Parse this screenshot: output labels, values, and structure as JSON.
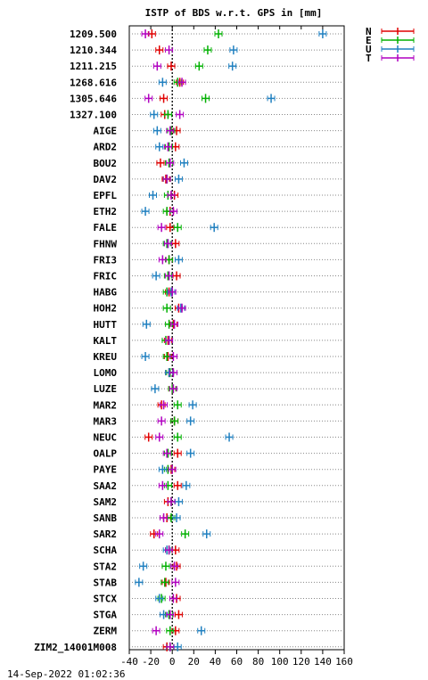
{
  "title": "ISTP of BDS w.r.t. GPS in [mm]",
  "timestamp": "14-Sep-2022 01:02:36",
  "colors": {
    "N": "#e00000",
    "E": "#00b000",
    "U": "#2080c0",
    "T": "#b000c0"
  },
  "chart_data": {
    "type": "scatter",
    "title": "ISTP of BDS w.r.t. GPS in [mm]",
    "xlabel": "",
    "ylabel": "",
    "xlim": [
      -40,
      160
    ],
    "xticks": [
      -40,
      -20,
      0,
      20,
      40,
      60,
      80,
      100,
      120,
      140,
      160
    ],
    "grid": true,
    "legend_position": "top-right",
    "categories": [
      "1209.500",
      "1210.344",
      "1211.215",
      "1268.616",
      "1305.646",
      "1327.100",
      "AIGE",
      "ARD2",
      "BOU2",
      "DAV2",
      "EPFL",
      "ETH2",
      "FALE",
      "FHNW",
      "FRI3",
      "FRIC",
      "HABG",
      "HOH2",
      "HUTT",
      "KALT",
      "KREU",
      "LOMO",
      "LUZE",
      "MAR2",
      "MAR3",
      "NEUC",
      "OALP",
      "PAYE",
      "SAA2",
      "SAM2",
      "SANB",
      "SAR2",
      "SCHA",
      "STA2",
      "STAB",
      "STCX",
      "STGA",
      "ZERM",
      "ZIM2_14001M008"
    ],
    "series": [
      {
        "name": "N",
        "color": "#e00000",
        "values": [
          -19,
          -12,
          -1,
          7,
          -8,
          -7,
          4,
          3,
          -11,
          -6,
          2,
          -2,
          -2,
          3,
          -3,
          4,
          -3,
          6,
          1,
          -4,
          -4,
          -3,
          0,
          -10,
          2,
          -22,
          5,
          -1,
          5,
          -4,
          -5,
          -17,
          3,
          4,
          -6,
          4,
          6,
          3,
          -5
        ]
      },
      {
        "name": "E",
        "color": "#00b000",
        "values": [
          43,
          33,
          25,
          5,
          31,
          -4,
          -1,
          -3,
          -3,
          -5,
          -4,
          -5,
          5,
          -5,
          -3,
          -4,
          -5,
          -5,
          -3,
          -6,
          -5,
          -2,
          0,
          5,
          2,
          5,
          -4,
          -4,
          -4,
          -1,
          -1,
          12,
          -3,
          -6,
          -7,
          -10,
          -3,
          -2,
          -2
        ]
      },
      {
        "name": "U",
        "color": "#2080c0",
        "values": [
          140,
          57,
          56,
          -9,
          92,
          -17,
          -14,
          -12,
          11,
          6,
          -18,
          -25,
          39,
          -4,
          6,
          -15,
          -1,
          8,
          -24,
          -3,
          -25,
          -3,
          -16,
          19,
          17,
          53,
          17,
          -9,
          13,
          6,
          4,
          32,
          -5,
          -27,
          -31,
          -12,
          -8,
          27,
          5
        ]
      },
      {
        "name": "T",
        "color": "#b000c0",
        "values": [
          -25,
          -3,
          -14,
          9,
          -22,
          7,
          -2,
          -4,
          -2,
          -5,
          -1,
          1,
          -10,
          -4,
          -9,
          -3,
          0,
          9,
          2,
          -3,
          1,
          1,
          1,
          -8,
          -10,
          -12,
          -5,
          0,
          -9,
          -1,
          -8,
          -12,
          -3,
          2,
          3,
          1,
          -2,
          -15,
          -2
        ]
      }
    ]
  }
}
